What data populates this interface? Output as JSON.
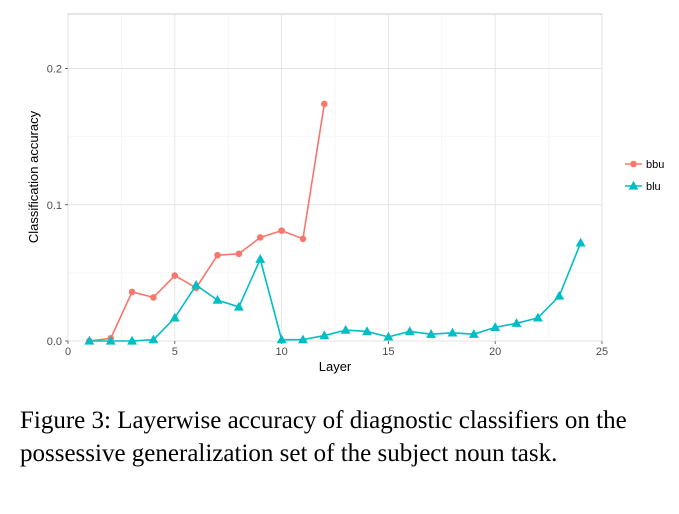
{
  "chart_data": {
    "type": "line",
    "xlabel": "Layer",
    "ylabel": "Classification accuracy",
    "xlim": [
      0,
      25
    ],
    "ylim": [
      0,
      0.24
    ],
    "x_ticks": [
      "0",
      "5",
      "10",
      "15",
      "20",
      "25"
    ],
    "x_tick_values": [
      0,
      5,
      10,
      15,
      20,
      25
    ],
    "y_ticks": [
      "0.0",
      "0.1",
      "0.2"
    ],
    "y_tick_values": [
      0,
      0.1,
      0.2
    ],
    "grid": true,
    "legend_position": "right",
    "series": [
      {
        "name": "bbu",
        "color": "#F8766D",
        "marker": "circle",
        "x": [
          1,
          2,
          3,
          4,
          5,
          6,
          7,
          8,
          9,
          10,
          11,
          12
        ],
        "y": [
          0.0,
          0.002,
          0.036,
          0.032,
          0.048,
          0.039,
          0.063,
          0.064,
          0.076,
          0.081,
          0.075,
          0.174
        ]
      },
      {
        "name": "blu",
        "color": "#00BFC4",
        "marker": "triangle",
        "x": [
          1,
          2,
          3,
          4,
          5,
          6,
          7,
          8,
          9,
          10,
          11,
          12,
          13,
          14,
          15,
          16,
          17,
          18,
          19,
          20,
          21,
          22,
          23,
          24
        ],
        "y": [
          0.0,
          0.0,
          0.0,
          0.001,
          0.017,
          0.041,
          0.03,
          0.025,
          0.06,
          0.001,
          0.001,
          0.004,
          0.008,
          0.007,
          0.003,
          0.007,
          0.005,
          0.006,
          0.005,
          0.01,
          0.013,
          0.017,
          0.033,
          0.072
        ]
      }
    ]
  },
  "caption": "Figure 3: Layerwise accuracy of diagnostic classifiers on the possessive generalization set of the subject noun task."
}
